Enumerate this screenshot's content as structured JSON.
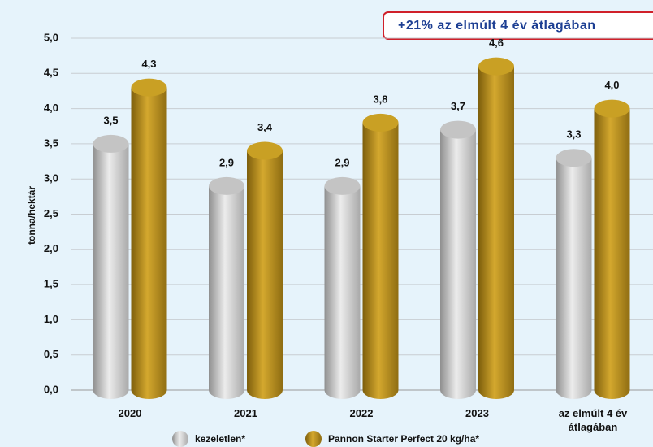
{
  "chart_data": {
    "type": "bar",
    "annotation": "+21% az elmúlt 4 év átlagában",
    "y_label": "tonna/hektár",
    "categories": [
      "2020",
      "2021",
      "2022",
      "2023",
      "az elmúlt 4 év átlagában"
    ],
    "series": [
      {
        "name": "kezeletlen*",
        "color": "#c4c4c4",
        "values": [
          3.5,
          2.9,
          2.9,
          3.7,
          3.3
        ],
        "value_labels": [
          "3,5",
          "2,9",
          "2,9",
          "3,7",
          "3,3"
        ]
      },
      {
        "name": "Pannon Starter Perfect 20 kg/ha*",
        "color": "#c9a024",
        "values": [
          4.3,
          3.4,
          3.8,
          4.6,
          4.0
        ],
        "value_labels": [
          "4,3",
          "3,4",
          "3,8",
          "4,6",
          "4,0"
        ]
      }
    ],
    "ylim": [
      0,
      5
    ],
    "yticks": [
      {
        "value": 0,
        "label": "0,0"
      },
      {
        "value": 0.5,
        "label": "0,5"
      },
      {
        "value": 1,
        "label": "1,0"
      },
      {
        "value": 1.5,
        "label": "1,5"
      },
      {
        "value": 2,
        "label": "2,0"
      },
      {
        "value": 2.5,
        "label": "2,5"
      },
      {
        "value": 3,
        "label": "3,0"
      },
      {
        "value": 3.5,
        "label": "3,5"
      },
      {
        "value": 4,
        "label": "4,0"
      },
      {
        "value": 4.5,
        "label": "4,5"
      },
      {
        "value": 5,
        "label": "5,0"
      }
    ],
    "grid": true
  }
}
